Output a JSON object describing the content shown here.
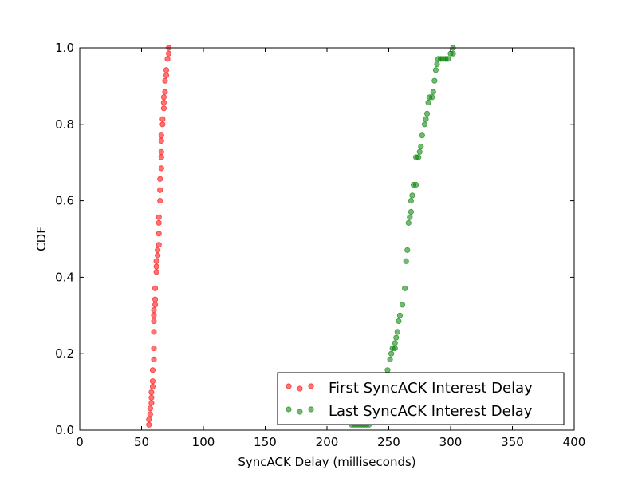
{
  "chart_data": {
    "type": "scatter",
    "title": "",
    "xlabel": "SyncACK Delay (milliseconds)",
    "ylabel": "CDF",
    "xlim": [
      0,
      400
    ],
    "ylim": [
      0.0,
      1.0
    ],
    "xticks": [
      0,
      50,
      100,
      150,
      200,
      250,
      300,
      350,
      400
    ],
    "xtick_labels": [
      "0",
      "50",
      "100",
      "150",
      "200",
      "250",
      "300",
      "350",
      "400"
    ],
    "yticks": [
      0.0,
      0.2,
      0.4,
      0.6,
      0.8,
      1.0
    ],
    "ytick_labels": [
      "0.0",
      "0.2",
      "0.4",
      "0.6",
      "0.8",
      "1.0"
    ],
    "grid": false,
    "legend_position": "bottom-right",
    "series": [
      {
        "name": "First SyncACK Interest Delay",
        "color": "#ff0000",
        "points": [
          [
            56,
            0.014
          ],
          [
            56,
            0.028
          ],
          [
            57,
            0.042
          ],
          [
            57,
            0.057
          ],
          [
            58,
            0.071
          ],
          [
            58,
            0.085
          ],
          [
            58,
            0.099
          ],
          [
            59,
            0.114
          ],
          [
            59,
            0.128
          ],
          [
            59,
            0.157
          ],
          [
            60,
            0.185
          ],
          [
            60,
            0.214
          ],
          [
            60,
            0.257
          ],
          [
            60,
            0.285
          ],
          [
            60,
            0.3
          ],
          [
            60,
            0.314
          ],
          [
            61,
            0.328
          ],
          [
            61,
            0.342
          ],
          [
            61,
            0.371
          ],
          [
            62,
            0.414
          ],
          [
            62,
            0.428
          ],
          [
            62,
            0.442
          ],
          [
            63,
            0.457
          ],
          [
            63,
            0.471
          ],
          [
            64,
            0.485
          ],
          [
            64,
            0.514
          ],
          [
            64,
            0.542
          ],
          [
            64,
            0.557
          ],
          [
            65,
            0.6
          ],
          [
            65,
            0.628
          ],
          [
            65,
            0.657
          ],
          [
            66,
            0.685
          ],
          [
            66,
            0.714
          ],
          [
            66,
            0.728
          ],
          [
            66,
            0.757
          ],
          [
            66,
            0.771
          ],
          [
            67,
            0.8
          ],
          [
            67,
            0.814
          ],
          [
            68,
            0.842
          ],
          [
            68,
            0.857
          ],
          [
            68,
            0.871
          ],
          [
            69,
            0.885
          ],
          [
            69,
            0.914
          ],
          [
            70,
            0.928
          ],
          [
            70,
            0.942
          ],
          [
            71,
            0.971
          ],
          [
            72,
            0.985
          ],
          [
            72,
            1.0
          ]
        ]
      },
      {
        "name": "Last SyncACK Interest Delay",
        "color": "#008000",
        "points": [
          [
            220,
            0.014
          ],
          [
            222,
            0.014
          ],
          [
            224,
            0.014
          ],
          [
            226,
            0.014
          ],
          [
            228,
            0.014
          ],
          [
            230,
            0.014
          ],
          [
            232,
            0.014
          ],
          [
            234,
            0.014
          ],
          [
            230,
            0.028
          ],
          [
            231,
            0.042
          ],
          [
            232,
            0.057
          ],
          [
            233,
            0.071
          ],
          [
            233,
            0.085
          ],
          [
            234,
            0.099
          ],
          [
            235,
            0.114
          ],
          [
            236,
            0.128
          ],
          [
            249,
            0.157
          ],
          [
            251,
            0.185
          ],
          [
            252,
            0.2
          ],
          [
            253,
            0.214
          ],
          [
            255,
            0.214
          ],
          [
            255,
            0.228
          ],
          [
            256,
            0.242
          ],
          [
            257,
            0.257
          ],
          [
            258,
            0.285
          ],
          [
            259,
            0.3
          ],
          [
            261,
            0.328
          ],
          [
            263,
            0.371
          ],
          [
            264,
            0.442
          ],
          [
            265,
            0.471
          ],
          [
            266,
            0.542
          ],
          [
            267,
            0.557
          ],
          [
            268,
            0.571
          ],
          [
            268,
            0.6
          ],
          [
            269,
            0.614
          ],
          [
            270,
            0.642
          ],
          [
            272,
            0.642
          ],
          [
            272,
            0.714
          ],
          [
            274,
            0.714
          ],
          [
            275,
            0.728
          ],
          [
            276,
            0.742
          ],
          [
            277,
            0.771
          ],
          [
            279,
            0.8
          ],
          [
            280,
            0.814
          ],
          [
            281,
            0.828
          ],
          [
            282,
            0.857
          ],
          [
            283,
            0.871
          ],
          [
            285,
            0.871
          ],
          [
            286,
            0.885
          ],
          [
            287,
            0.914
          ],
          [
            288,
            0.942
          ],
          [
            289,
            0.957
          ],
          [
            290,
            0.971
          ],
          [
            292,
            0.971
          ],
          [
            294,
            0.971
          ],
          [
            296,
            0.971
          ],
          [
            298,
            0.971
          ],
          [
            300,
            0.985
          ],
          [
            302,
            0.985
          ],
          [
            302,
            1.0
          ]
        ]
      }
    ]
  }
}
